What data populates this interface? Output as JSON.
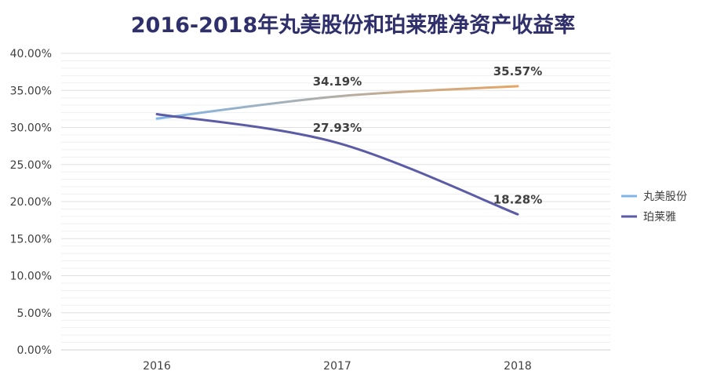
{
  "chart_data": {
    "type": "line",
    "title": "2016-2018年丸美股份和珀莱雅净资产收益率",
    "categories": [
      "2016",
      "2017",
      "2018"
    ],
    "ylim": [
      0,
      40
    ],
    "y_ticks": [
      0,
      5,
      10,
      15,
      20,
      25,
      30,
      35,
      40
    ],
    "y_tick_labels": [
      "0.00%",
      "5.00%",
      "10.00%",
      "15.00%",
      "20.00%",
      "25.00%",
      "30.00%",
      "35.00%",
      "40.00%"
    ],
    "grid": true,
    "legend_position": "right",
    "series": [
      {
        "name": "丸美股份",
        "values": [
          31.2,
          34.19,
          35.57
        ],
        "data_labels": [
          "",
          "34.19%",
          "35.57%"
        ],
        "color_start": "#7eb6e8",
        "color_end": "#e8a563"
      },
      {
        "name": "珀莱雅",
        "values": [
          31.8,
          27.93,
          18.28
        ],
        "data_labels": [
          "",
          "27.93%",
          "18.28%"
        ],
        "color": "#5b5ba6"
      }
    ]
  }
}
